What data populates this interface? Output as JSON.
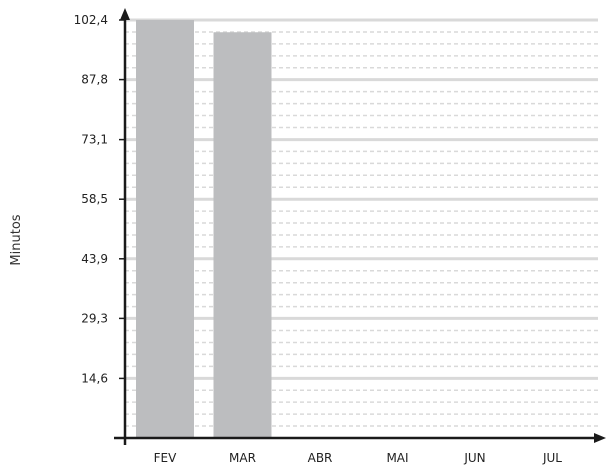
{
  "chart_data": {
    "type": "bar",
    "ylabel": "Minutos",
    "categories": [
      "FEV",
      "MAR",
      "ABR",
      "MAI",
      "JUN",
      "JUL"
    ],
    "series": [
      {
        "values": [
          102.4,
          99.4,
          null,
          null,
          null,
          null
        ]
      }
    ],
    "ylim": [
      0,
      102.4
    ],
    "yticks": [
      "14,6",
      "29,3",
      "43,9",
      "58,5",
      "73,1",
      "87,8",
      "102,4"
    ],
    "grid": true,
    "colors": {
      "bar": "#bcbdbf",
      "grid_major": "#d9d9d9",
      "grid_minor": "#d9d9d9",
      "axis": "#1a1a1a"
    }
  }
}
